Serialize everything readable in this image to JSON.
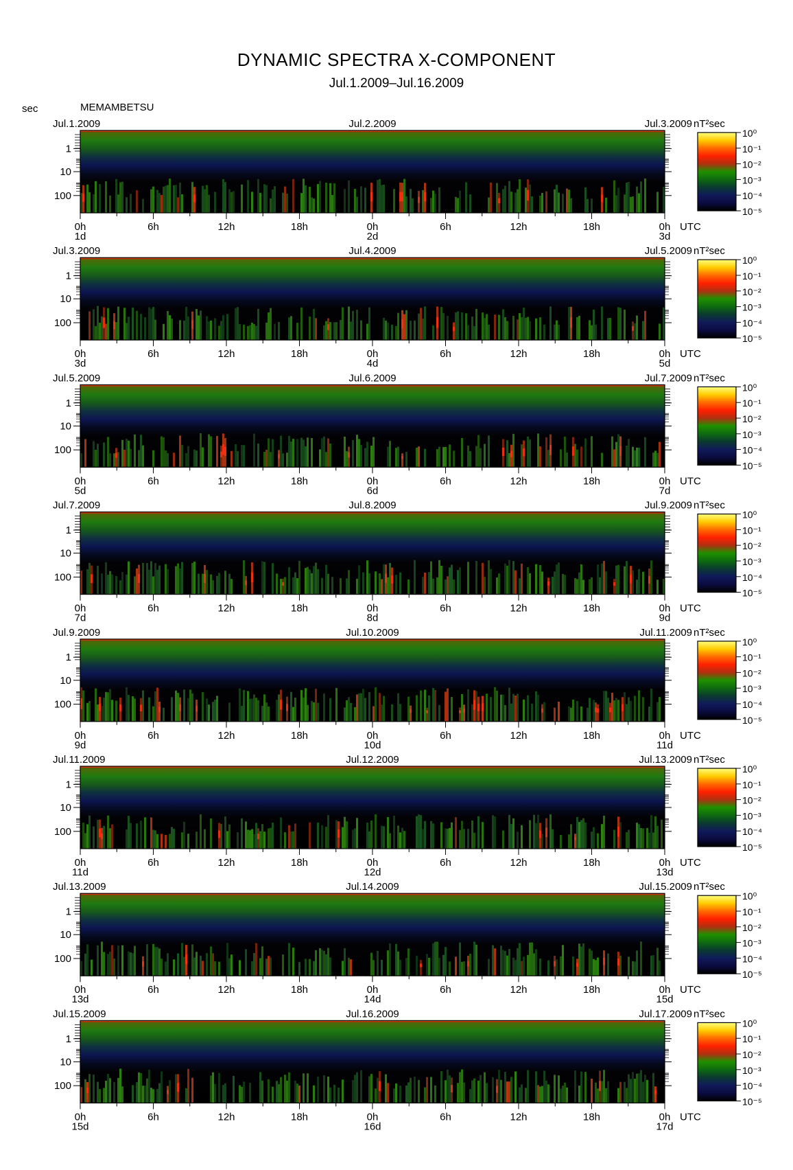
{
  "header": {
    "title": "DYNAMIC SPECTRA X-COMPONENT",
    "subtitle": "Jul.1.2009–Jul.16.2009",
    "unit_label": "sec",
    "station": "MEMAMBETSU"
  },
  "chart_data": {
    "type": "heatmap",
    "ylabel": "sec",
    "y_ticks": [
      "1",
      "10",
      "100"
    ],
    "x_ticks": [
      "0h",
      "6h",
      "12h",
      "18h",
      "0h",
      "6h",
      "12h",
      "18h",
      "0h"
    ],
    "x_tick_suffix": "UTC",
    "colorbar": {
      "label": "nT²sec",
      "ticks": [
        "10⁰",
        "10⁻¹",
        "10⁻²",
        "10⁻³",
        "10⁻⁴",
        "10⁻⁵"
      ],
      "colors": [
        "#ffff80",
        "#ffcc00",
        "#ff6a00",
        "#ff2000",
        "#b03010",
        "#1f9000",
        "#0e6a10",
        "#0a3a30",
        "#101a5a",
        "#0b0b40",
        "#000000"
      ]
    },
    "panels": [
      {
        "left_date": "Jul.1.2009",
        "mid_date": "Jul.2.2009",
        "right_date": "Jul.3.2009",
        "day_labels": [
          "1d",
          "2d",
          "3d"
        ]
      },
      {
        "left_date": "Jul.3.2009",
        "mid_date": "Jul.4.2009",
        "right_date": "Jul.5.2009",
        "day_labels": [
          "3d",
          "4d",
          "5d"
        ]
      },
      {
        "left_date": "Jul.5.2009",
        "mid_date": "Jul.6.2009",
        "right_date": "Jul.7.2009",
        "day_labels": [
          "5d",
          "6d",
          "7d"
        ]
      },
      {
        "left_date": "Jul.7.2009",
        "mid_date": "Jul.8.2009",
        "right_date": "Jul.9.2009",
        "day_labels": [
          "7d",
          "8d",
          "9d"
        ]
      },
      {
        "left_date": "Jul.9.2009",
        "mid_date": "Jul.10.2009",
        "right_date": "Jul.11.2009",
        "day_labels": [
          "9d",
          "10d",
          "11d"
        ]
      },
      {
        "left_date": "Jul.11.2009",
        "mid_date": "Jul.12.2009",
        "right_date": "Jul.13.2009",
        "day_labels": [
          "11d",
          "12d",
          "13d"
        ]
      },
      {
        "left_date": "Jul.13.2009",
        "mid_date": "Jul.14.2009",
        "right_date": "Jul.15.2009",
        "day_labels": [
          "13d",
          "14d",
          "15d"
        ]
      },
      {
        "left_date": "Jul.15.2009",
        "mid_date": "Jul.16.2009",
        "right_date": "Jul.17.2009",
        "day_labels": [
          "15d",
          "16d",
          "17d"
        ]
      }
    ]
  }
}
